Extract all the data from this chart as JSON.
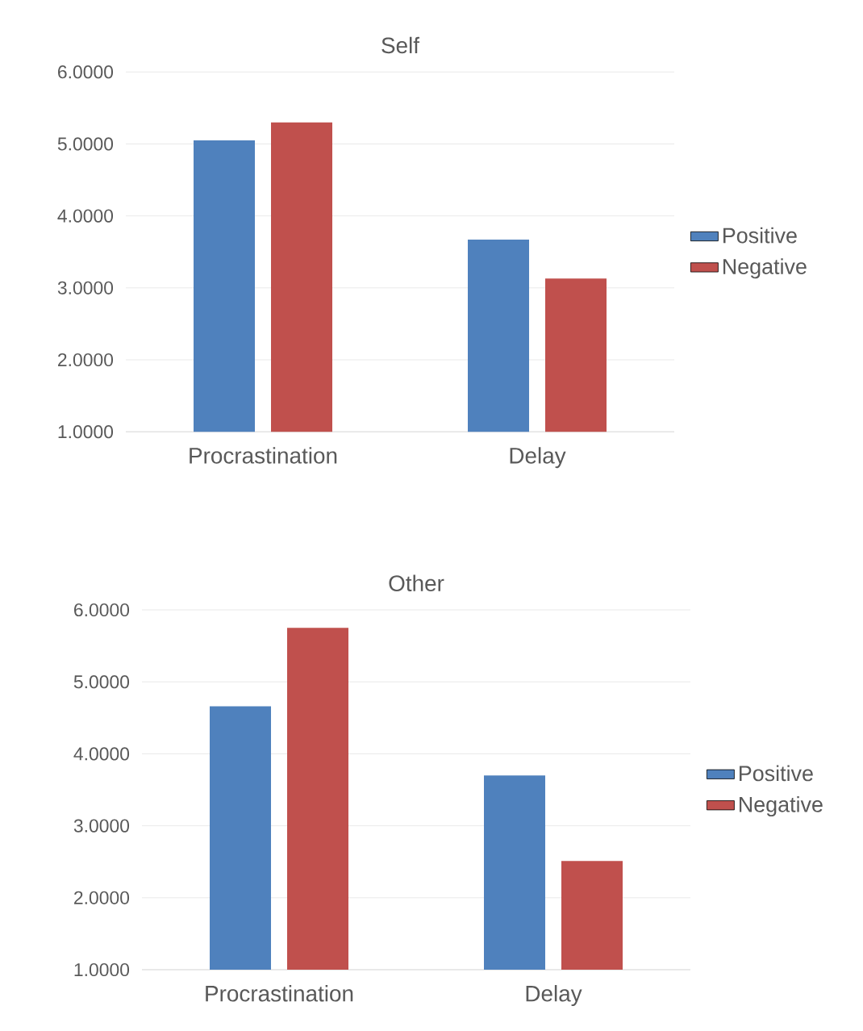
{
  "chart_data": [
    {
      "type": "bar",
      "title": "Self",
      "categories": [
        "Procrastination",
        "Delay"
      ],
      "series": [
        {
          "name": "Positive",
          "color": "#4f81bd",
          "values": [
            5.05,
            3.67
          ]
        },
        {
          "name": "Negative",
          "color": "#c0504d",
          "values": [
            5.3,
            3.13
          ]
        }
      ],
      "ylim": [
        1,
        6
      ],
      "yticks": [
        {
          "value": 1,
          "label": "1.0000"
        },
        {
          "value": 2,
          "label": "2.0000"
        },
        {
          "value": 3,
          "label": "3.0000"
        },
        {
          "value": 4,
          "label": "4.0000"
        },
        {
          "value": 5,
          "label": "5.0000"
        },
        {
          "value": 6,
          "label": "6.0000"
        }
      ],
      "grid": "y",
      "legend": "right"
    },
    {
      "type": "bar",
      "title": "Other",
      "categories": [
        "Procrastination",
        "Delay"
      ],
      "series": [
        {
          "name": "Positive",
          "color": "#4f81bd",
          "values": [
            4.66,
            3.7
          ]
        },
        {
          "name": "Negative",
          "color": "#c0504d",
          "values": [
            5.75,
            2.51
          ]
        }
      ],
      "ylim": [
        1,
        6
      ],
      "yticks": [
        {
          "value": 1,
          "label": "1.0000"
        },
        {
          "value": 2,
          "label": "2.0000"
        },
        {
          "value": 3,
          "label": "3.0000"
        },
        {
          "value": 4,
          "label": "4.0000"
        },
        {
          "value": 5,
          "label": "5.0000"
        },
        {
          "value": 6,
          "label": "6.0000"
        }
      ],
      "grid": "y",
      "legend": "right"
    }
  ]
}
